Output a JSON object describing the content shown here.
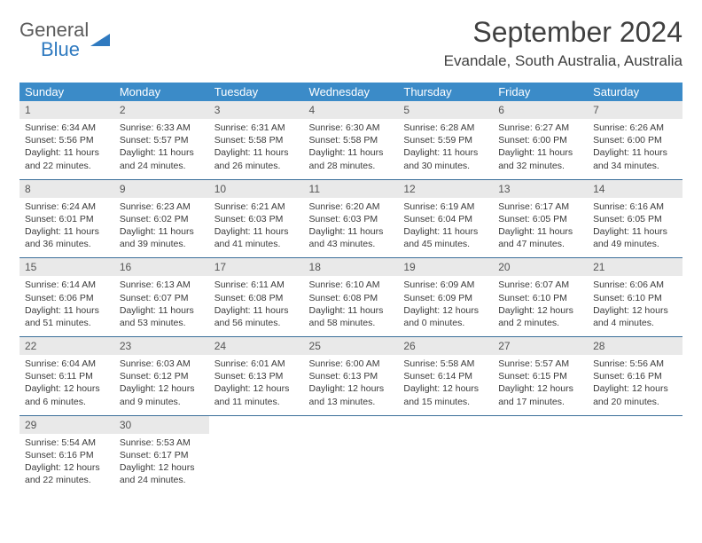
{
  "brand": {
    "word1": "General",
    "word2": "Blue"
  },
  "title": "September 2024",
  "location": "Evandale, South Australia, Australia",
  "colors": {
    "header_bg": "#3b8bc8",
    "header_text": "#ffffff",
    "daynum_bg": "#e9e9e9",
    "week_border": "#3b6f9a",
    "body_text": "#3a3a3a",
    "title_text": "#404040",
    "logo_gray": "#5b5b5b",
    "logo_blue": "#2f7ac0"
  },
  "dow": [
    "Sunday",
    "Monday",
    "Tuesday",
    "Wednesday",
    "Thursday",
    "Friday",
    "Saturday"
  ],
  "weeks": [
    [
      {
        "n": "1",
        "sr": "6:34 AM",
        "ss": "5:56 PM",
        "dl": "11 hours and 22 minutes."
      },
      {
        "n": "2",
        "sr": "6:33 AM",
        "ss": "5:57 PM",
        "dl": "11 hours and 24 minutes."
      },
      {
        "n": "3",
        "sr": "6:31 AM",
        "ss": "5:58 PM",
        "dl": "11 hours and 26 minutes."
      },
      {
        "n": "4",
        "sr": "6:30 AM",
        "ss": "5:58 PM",
        "dl": "11 hours and 28 minutes."
      },
      {
        "n": "5",
        "sr": "6:28 AM",
        "ss": "5:59 PM",
        "dl": "11 hours and 30 minutes."
      },
      {
        "n": "6",
        "sr": "6:27 AM",
        "ss": "6:00 PM",
        "dl": "11 hours and 32 minutes."
      },
      {
        "n": "7",
        "sr": "6:26 AM",
        "ss": "6:00 PM",
        "dl": "11 hours and 34 minutes."
      }
    ],
    [
      {
        "n": "8",
        "sr": "6:24 AM",
        "ss": "6:01 PM",
        "dl": "11 hours and 36 minutes."
      },
      {
        "n": "9",
        "sr": "6:23 AM",
        "ss": "6:02 PM",
        "dl": "11 hours and 39 minutes."
      },
      {
        "n": "10",
        "sr": "6:21 AM",
        "ss": "6:03 PM",
        "dl": "11 hours and 41 minutes."
      },
      {
        "n": "11",
        "sr": "6:20 AM",
        "ss": "6:03 PM",
        "dl": "11 hours and 43 minutes."
      },
      {
        "n": "12",
        "sr": "6:19 AM",
        "ss": "6:04 PM",
        "dl": "11 hours and 45 minutes."
      },
      {
        "n": "13",
        "sr": "6:17 AM",
        "ss": "6:05 PM",
        "dl": "11 hours and 47 minutes."
      },
      {
        "n": "14",
        "sr": "6:16 AM",
        "ss": "6:05 PM",
        "dl": "11 hours and 49 minutes."
      }
    ],
    [
      {
        "n": "15",
        "sr": "6:14 AM",
        "ss": "6:06 PM",
        "dl": "11 hours and 51 minutes."
      },
      {
        "n": "16",
        "sr": "6:13 AM",
        "ss": "6:07 PM",
        "dl": "11 hours and 53 minutes."
      },
      {
        "n": "17",
        "sr": "6:11 AM",
        "ss": "6:08 PM",
        "dl": "11 hours and 56 minutes."
      },
      {
        "n": "18",
        "sr": "6:10 AM",
        "ss": "6:08 PM",
        "dl": "11 hours and 58 minutes."
      },
      {
        "n": "19",
        "sr": "6:09 AM",
        "ss": "6:09 PM",
        "dl": "12 hours and 0 minutes."
      },
      {
        "n": "20",
        "sr": "6:07 AM",
        "ss": "6:10 PM",
        "dl": "12 hours and 2 minutes."
      },
      {
        "n": "21",
        "sr": "6:06 AM",
        "ss": "6:10 PM",
        "dl": "12 hours and 4 minutes."
      }
    ],
    [
      {
        "n": "22",
        "sr": "6:04 AM",
        "ss": "6:11 PM",
        "dl": "12 hours and 6 minutes."
      },
      {
        "n": "23",
        "sr": "6:03 AM",
        "ss": "6:12 PM",
        "dl": "12 hours and 9 minutes."
      },
      {
        "n": "24",
        "sr": "6:01 AM",
        "ss": "6:13 PM",
        "dl": "12 hours and 11 minutes."
      },
      {
        "n": "25",
        "sr": "6:00 AM",
        "ss": "6:13 PM",
        "dl": "12 hours and 13 minutes."
      },
      {
        "n": "26",
        "sr": "5:58 AM",
        "ss": "6:14 PM",
        "dl": "12 hours and 15 minutes."
      },
      {
        "n": "27",
        "sr": "5:57 AM",
        "ss": "6:15 PM",
        "dl": "12 hours and 17 minutes."
      },
      {
        "n": "28",
        "sr": "5:56 AM",
        "ss": "6:16 PM",
        "dl": "12 hours and 20 minutes."
      }
    ],
    [
      {
        "n": "29",
        "sr": "5:54 AM",
        "ss": "6:16 PM",
        "dl": "12 hours and 22 minutes."
      },
      {
        "n": "30",
        "sr": "5:53 AM",
        "ss": "6:17 PM",
        "dl": "12 hours and 24 minutes."
      },
      null,
      null,
      null,
      null,
      null
    ]
  ],
  "labels": {
    "sunrise": "Sunrise: ",
    "sunset": "Sunset: ",
    "daylight": "Daylight: "
  }
}
